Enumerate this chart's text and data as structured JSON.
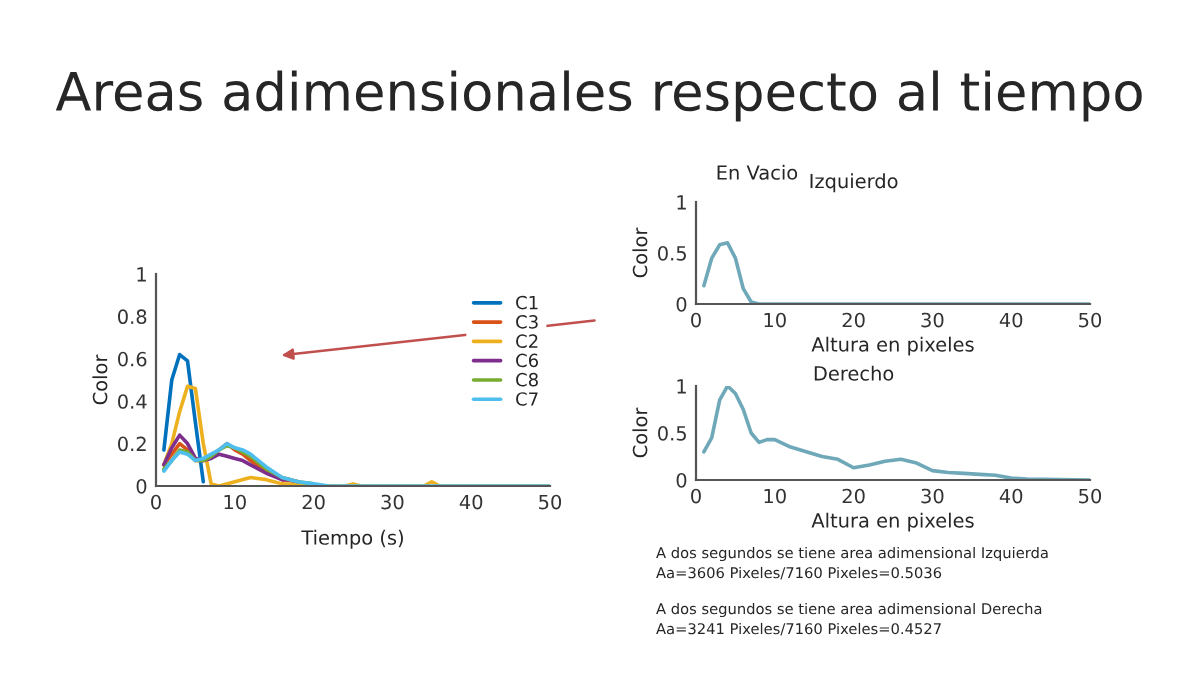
{
  "chart_data": [
    {
      "type": "line",
      "title": "Areas adimensionales respecto al tiempo",
      "xlabel": "Tiempo (s)",
      "ylabel": "Color",
      "xlim": [
        0,
        50
      ],
      "ylim": [
        0,
        1
      ],
      "xticks": [
        0,
        10,
        20,
        30,
        40,
        50
      ],
      "yticks": [
        0,
        0.2,
        0.4,
        0.6,
        0.8,
        1
      ],
      "legend": "top right",
      "grid": false,
      "series": [
        {
          "name": "C1",
          "color": "#0072bd",
          "x": [
            1,
            2,
            3,
            4,
            5,
            6
          ],
          "values": [
            0.17,
            0.5,
            0.62,
            0.59,
            0.3,
            0.02
          ]
        },
        {
          "name": "C3",
          "color": "#d95319",
          "x": [
            1,
            2,
            3,
            4,
            5,
            6,
            7,
            8,
            9,
            10,
            11,
            12,
            14,
            16,
            18
          ],
          "values": [
            0.1,
            0.15,
            0.2,
            0.17,
            0.12,
            0.12,
            0.14,
            0.17,
            0.2,
            0.17,
            0.15,
            0.12,
            0.07,
            0.03,
            0.02
          ]
        },
        {
          "name": "C2",
          "color": "#edb120",
          "x": [
            1,
            2,
            3,
            4,
            5,
            6,
            7,
            8,
            10,
            12,
            14,
            16,
            20,
            24,
            25,
            26,
            34,
            35,
            36,
            50
          ],
          "values": [
            0.1,
            0.2,
            0.35,
            0.47,
            0.46,
            0.2,
            0.01,
            0,
            0.02,
            0.04,
            0.03,
            0.01,
            0,
            0,
            0.01,
            0,
            0,
            0.02,
            0,
            0
          ]
        },
        {
          "name": "C6",
          "color": "#7e2f8e",
          "x": [
            1,
            2,
            3,
            4,
            5,
            6,
            7,
            8,
            9,
            10,
            11,
            12,
            14,
            16,
            17,
            18
          ],
          "values": [
            0.1,
            0.18,
            0.24,
            0.2,
            0.13,
            0.12,
            0.13,
            0.15,
            0.14,
            0.13,
            0.12,
            0.1,
            0.06,
            0.03,
            0.03,
            0.02
          ]
        },
        {
          "name": "C8",
          "color": "#77ac30",
          "x": [
            1,
            2,
            3,
            4,
            5,
            6,
            7,
            8,
            9,
            10,
            11,
            12,
            14,
            16,
            18,
            20
          ],
          "values": [
            0.08,
            0.12,
            0.17,
            0.16,
            0.12,
            0.12,
            0.14,
            0.17,
            0.19,
            0.18,
            0.16,
            0.14,
            0.08,
            0.04,
            0.02,
            0.01
          ]
        },
        {
          "name": "C7",
          "color": "#4dbeee",
          "x": [
            1,
            2,
            3,
            4,
            5,
            6,
            7,
            8,
            9,
            10,
            11,
            12,
            14,
            16,
            18,
            20,
            22,
            50
          ],
          "values": [
            0.07,
            0.12,
            0.16,
            0.15,
            0.12,
            0.13,
            0.15,
            0.17,
            0.2,
            0.18,
            0.17,
            0.15,
            0.09,
            0.04,
            0.02,
            0.01,
            0,
            0
          ]
        }
      ]
    },
    {
      "type": "line",
      "title": "Izquierdo",
      "xlabel": "Altura en pixeles",
      "ylabel": "Color",
      "xlim": [
        0,
        50
      ],
      "ylim": [
        0,
        1
      ],
      "xticks": [
        0,
        10,
        20,
        30,
        40,
        50
      ],
      "yticks": [
        0,
        0.5,
        1
      ],
      "grid": false,
      "annotations": [
        "En Vacio"
      ],
      "series": [
        {
          "color": "#6fa8b8",
          "x": [
            1,
            2,
            3,
            4,
            5,
            6,
            7,
            8,
            50
          ],
          "values": [
            0.18,
            0.45,
            0.58,
            0.6,
            0.45,
            0.15,
            0.02,
            0,
            0
          ]
        }
      ]
    },
    {
      "type": "line",
      "title": "Derecho",
      "xlabel": "Altura en pixeles",
      "ylabel": "Color",
      "xlim": [
        0,
        50
      ],
      "ylim": [
        0,
        1
      ],
      "xticks": [
        0,
        10,
        20,
        30,
        40,
        50
      ],
      "yticks": [
        0,
        0.5,
        1
      ],
      "grid": false,
      "annotations": [
        "A dos segundos se tiene area adimensional Izquierda",
        "Aa=3606 Pixeles/7160 Pixeles=0.5036",
        "A dos segundos se tiene area adimensional Derecha",
        "Aa=3241 Pixeles/7160 Pixeles=0.4527"
      ],
      "series": [
        {
          "color": "#6fa8b8",
          "x": [
            1,
            2,
            3,
            4,
            5,
            6,
            7,
            8,
            9,
            10,
            12,
            14,
            16,
            18,
            20,
            22,
            24,
            26,
            28,
            30,
            32,
            34,
            36,
            38,
            40,
            42,
            50
          ],
          "values": [
            0.3,
            0.45,
            0.85,
            1.0,
            0.92,
            0.75,
            0.5,
            0.4,
            0.43,
            0.43,
            0.35,
            0.3,
            0.25,
            0.22,
            0.13,
            0.16,
            0.2,
            0.22,
            0.18,
            0.1,
            0.08,
            0.07,
            0.06,
            0.05,
            0.02,
            0.01,
            0
          ]
        }
      ]
    }
  ]
}
